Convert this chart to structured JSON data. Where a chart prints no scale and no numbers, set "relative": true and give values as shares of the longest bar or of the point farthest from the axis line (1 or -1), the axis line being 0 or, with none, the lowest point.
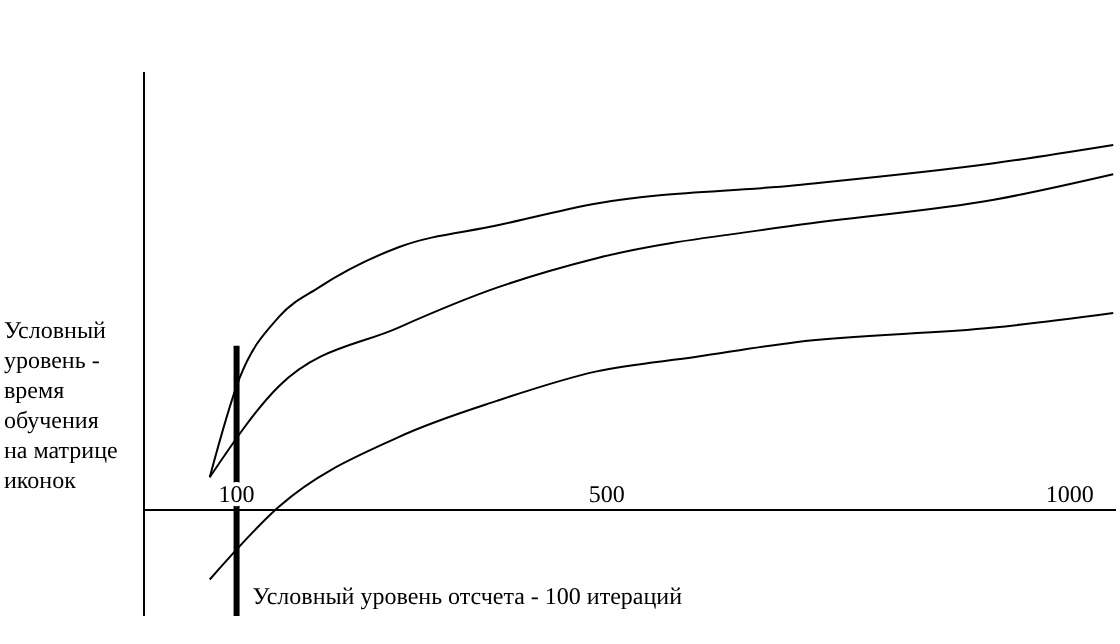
{
  "chart_data": {
    "type": "line",
    "relative": true,
    "ylabel": "Условный уровень - время обучения на матрице иконок",
    "xlim": [
      0,
      1050
    ],
    "xticks": [
      100,
      500,
      1000
    ],
    "line_style": "solid",
    "ref_lines": [
      {
        "axis": "x",
        "value": 100,
        "label": "Условный уровень отсчета - 100 итераций"
      }
    ],
    "series": [
      {
        "color": "#000000",
        "x": [
          71,
          103,
          146,
          189,
          275,
          382,
          489,
          704,
          918,
          1047
        ],
        "values": [
          0.09,
          0.36,
          0.53,
          0.61,
          0.72,
          0.78,
          0.84,
          0.89,
          0.95,
          1
        ]
      },
      {
        "color": "#000000",
        "x": [
          71,
          146,
          275,
          382,
          489,
          704,
          918,
          1047
        ],
        "values": [
          0.09,
          0.34,
          0.5,
          0.61,
          0.69,
          0.78,
          0.85,
          0.92
        ]
      },
      {
        "color": "#000000",
        "x": [
          71,
          146,
          275,
          382,
          489,
          597,
          704,
          918,
          1047
        ],
        "values": [
          -0.19,
          0.01,
          0.2,
          0.3,
          0.38,
          0.42,
          0.46,
          0.5,
          0.54
        ]
      }
    ]
  }
}
